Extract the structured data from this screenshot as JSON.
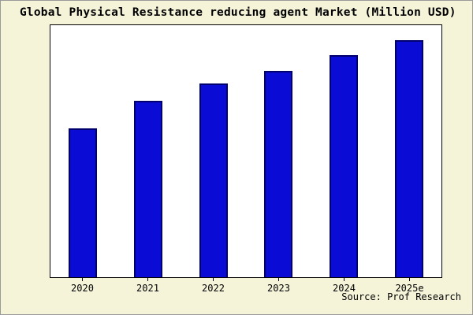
{
  "colors": {
    "figure_background": "#f5f4d9",
    "plot_background": "#ffffff",
    "bar_fill": "#0b0bd6",
    "bar_border": "#00006e",
    "axis": "#000000"
  },
  "chart_data": {
    "type": "bar",
    "title": "Global Physical Resistance reducing agent Market (Million USD)",
    "categories": [
      "2020",
      "2021",
      "2022",
      "2023",
      "2024",
      "2025e"
    ],
    "values": [
      59,
      70,
      77,
      82,
      88,
      94
    ],
    "xlabel": "",
    "ylabel": "",
    "ylim": [
      0,
      100
    ],
    "grid": false,
    "legend": false,
    "value_scale": "relative bar heights (% of plot height); no y-axis tick labels are shown in the chart",
    "source": "Source: Prof Research"
  }
}
